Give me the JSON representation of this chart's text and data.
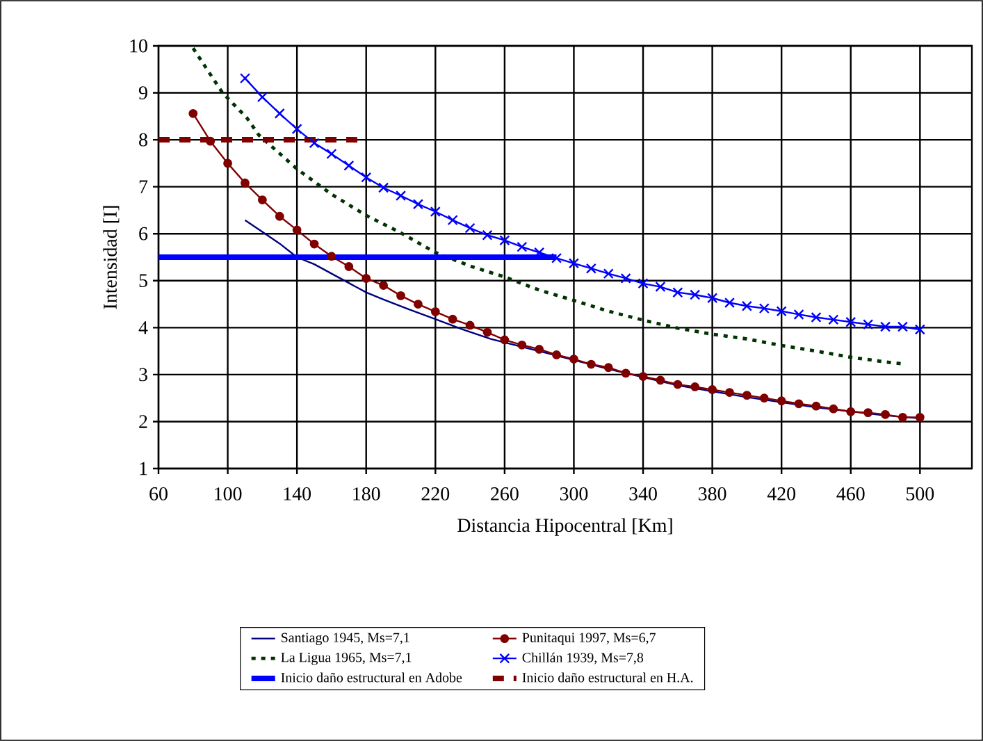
{
  "chart_data": {
    "type": "line",
    "xlabel": "Distancia Hipocentral [Km]",
    "ylabel": "Intensidad [I]",
    "xlim": [
      60,
      530
    ],
    "xticks": [
      60,
      100,
      140,
      180,
      220,
      260,
      300,
      340,
      380,
      420,
      460,
      500
    ],
    "ylim": [
      1,
      10
    ],
    "yticks": [
      1,
      2,
      3,
      4,
      5,
      6,
      7,
      8,
      9,
      10
    ],
    "grid": true,
    "legend": "bottom",
    "series": [
      {
        "name": "Santiago 1945, Ms=7,1",
        "color": "#000080",
        "marker": "none",
        "line_style": "solid",
        "x": [
          110,
          120,
          130,
          140,
          150,
          160,
          170,
          180,
          190,
          204,
          220,
          236,
          252,
          280,
          320,
          360,
          400,
          440,
          480,
          500
        ],
        "values": [
          6.29,
          6.04,
          5.79,
          5.5,
          5.35,
          5.15,
          4.95,
          4.75,
          4.6,
          4.4,
          4.18,
          3.96,
          3.76,
          3.5,
          3.12,
          2.77,
          2.52,
          2.3,
          2.13,
          2.07
        ]
      },
      {
        "name": "Punitaqui 1997, Ms=6,7",
        "color": "#800000",
        "marker": "circle",
        "line_style": "solid",
        "x": [
          80,
          90,
          100,
          110,
          120,
          130,
          140,
          150,
          160,
          170,
          180,
          190,
          200,
          210,
          220,
          230,
          240,
          250,
          260,
          270,
          280,
          290,
          300,
          310,
          320,
          330,
          340,
          350,
          360,
          370,
          380,
          390,
          400,
          410,
          420,
          430,
          440,
          450,
          460,
          470,
          480,
          490,
          500
        ],
        "values": [
          8.56,
          7.97,
          7.5,
          7.08,
          6.72,
          6.37,
          6.08,
          5.78,
          5.52,
          5.3,
          5.05,
          4.9,
          4.68,
          4.5,
          4.34,
          4.18,
          4.05,
          3.9,
          3.74,
          3.63,
          3.54,
          3.42,
          3.33,
          3.22,
          3.15,
          3.03,
          2.96,
          2.88,
          2.79,
          2.74,
          2.68,
          2.62,
          2.56,
          2.5,
          2.44,
          2.38,
          2.33,
          2.27,
          2.21,
          2.19,
          2.15,
          2.09,
          2.09
        ]
      },
      {
        "name": "La Ligua 1965, Ms=7,1",
        "color": "#003300",
        "marker": "none",
        "line_style": "dotted",
        "x": [
          80,
          97,
          111,
          118,
          140,
          160,
          180,
          199,
          220,
          241,
          260,
          280,
          300,
          320,
          340,
          360,
          380,
          400,
          420,
          440,
          460,
          480,
          490
        ],
        "values": [
          9.95,
          9.0,
          8.47,
          8.1,
          7.38,
          6.84,
          6.39,
          6.04,
          5.6,
          5.3,
          5.08,
          4.8,
          4.58,
          4.35,
          4.16,
          3.99,
          3.86,
          3.76,
          3.62,
          3.5,
          3.37,
          3.27,
          3.23
        ]
      },
      {
        "name": "Chillán 1939, Ms=7,8",
        "color": "#0000ff",
        "marker": "cross",
        "line_style": "solid",
        "x": [
          110,
          120,
          130,
          140,
          150,
          160,
          170,
          180,
          190,
          200,
          210,
          220,
          230,
          240,
          250,
          260,
          270,
          280,
          290,
          300,
          310,
          320,
          330,
          340,
          350,
          360,
          370,
          380,
          390,
          400,
          410,
          420,
          430,
          440,
          450,
          460,
          470,
          480,
          490,
          500
        ],
        "values": [
          9.31,
          8.91,
          8.56,
          8.23,
          7.93,
          7.7,
          7.45,
          7.2,
          6.98,
          6.81,
          6.63,
          6.47,
          6.29,
          6.12,
          5.97,
          5.86,
          5.72,
          5.6,
          5.48,
          5.37,
          5.26,
          5.15,
          5.05,
          4.94,
          4.87,
          4.75,
          4.7,
          4.63,
          4.53,
          4.46,
          4.41,
          4.35,
          4.28,
          4.22,
          4.17,
          4.12,
          4.07,
          4.02,
          4.02,
          3.96
        ]
      },
      {
        "name": "Inicio daño estructural en Adobe",
        "color": "#0000ff",
        "marker": "none",
        "line_style": "solid",
        "x": [
          60,
          290
        ],
        "values": [
          5.5,
          5.5
        ]
      },
      {
        "name": "Inicio daño estructural en H.A.",
        "color": "#800000",
        "marker": "none",
        "line_style": "dashed",
        "x": [
          60,
          178
        ],
        "values": [
          8,
          8
        ]
      }
    ]
  }
}
